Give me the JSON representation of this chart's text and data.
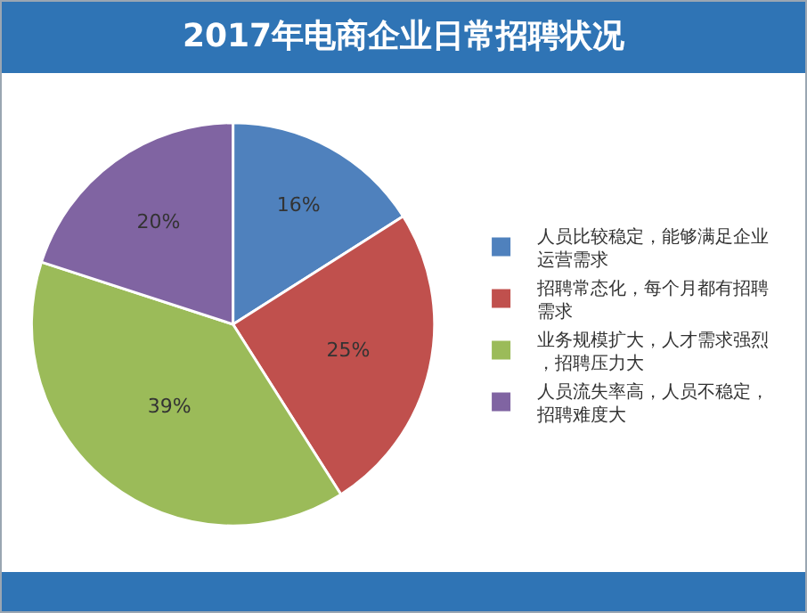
{
  "chart_data": {
    "type": "pie",
    "title": "2017年电商企业日常招聘状况",
    "categories": [
      "人员比较稳定，能够满足企业运营需求",
      "招聘常态化，每个月都有招聘需求",
      "业务规模扩大，人才需求强烈，招聘压力大",
      "人员流失率高，人员不稳定，招聘难度大"
    ],
    "values": [
      16,
      25,
      39,
      20
    ],
    "value_labels": [
      "16%",
      "25%",
      "39%",
      "20%"
    ],
    "colors": [
      "#4f81bd",
      "#c0504d",
      "#9bbb59",
      "#8064a2"
    ],
    "legend": "right"
  }
}
